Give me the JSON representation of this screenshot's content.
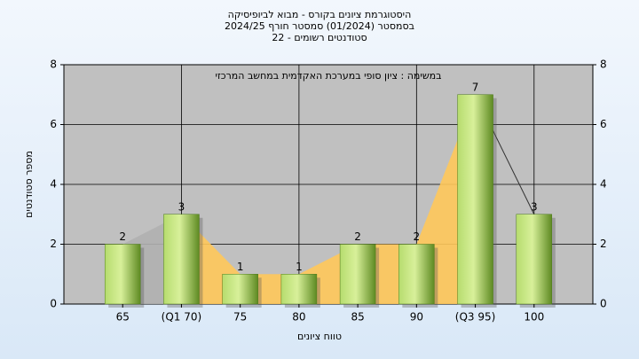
{
  "chart_data": {
    "type": "bar",
    "title": [
      "היסטוגרמת ציונים בקורס - מבוא לביופיסיקה",
      "בסמסטר (01/2024) סמסטר חורף 2024/25",
      "סטודנטים רשומים - 22"
    ],
    "annotation": "במשימה : ציון סופי במערכת האקדמית במחשב המרכזי",
    "x_label": "טווח ציונים",
    "y_label": "מספר סטודנטים",
    "categories": [
      "65",
      "(Q1 70)",
      "75",
      "80",
      "85",
      "90",
      "(Q3 95)",
      "100"
    ],
    "values": [
      2,
      3,
      1,
      1,
      2,
      2,
      7,
      3
    ],
    "color": "#8cc04a",
    "ylim": [
      0,
      8
    ],
    "yticks": [
      0,
      2,
      4,
      6,
      8
    ],
    "grid": true
  }
}
